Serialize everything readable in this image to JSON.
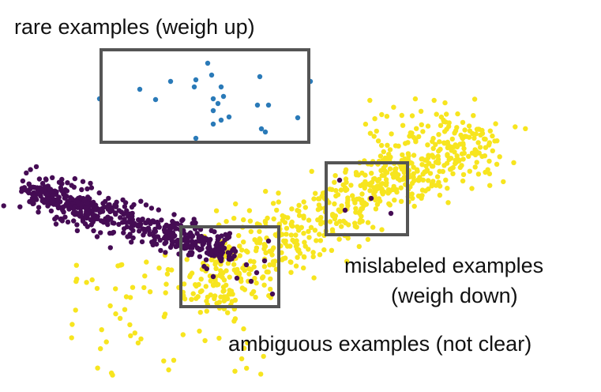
{
  "labels": {
    "rare": "rare examples (weigh up)",
    "mislabeled_line1": "mislabeled examples",
    "mislabeled_line2": "(weigh down)",
    "ambiguous": "ambiguous examples (not clear)"
  },
  "colors": {
    "rare_points": "#2a7ab8",
    "majority_yellow": "#f7e51f",
    "minority_purple": "#450c54",
    "box_stroke": "#555555",
    "text": "#111111"
  }
}
